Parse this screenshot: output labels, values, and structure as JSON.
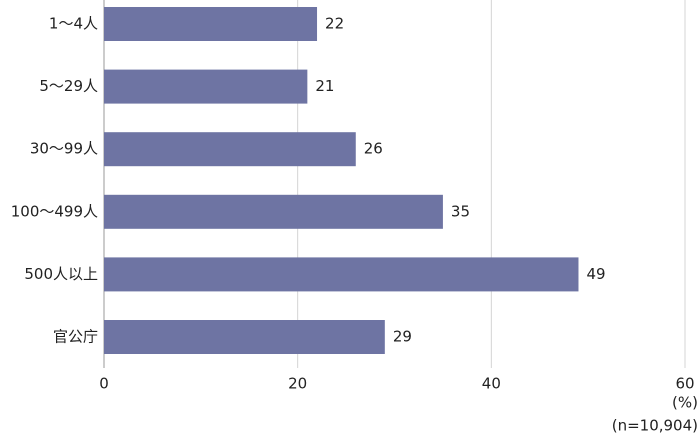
{
  "chart_data": {
    "type": "bar",
    "orientation": "horizontal",
    "categories": [
      "1～4人",
      "5～29人",
      "30～99人",
      "100～499人",
      "500人以上",
      "官公庁"
    ],
    "values": [
      22,
      21,
      26,
      35,
      49,
      29
    ],
    "color": "#6e74a3",
    "xlim": [
      0,
      60
    ],
    "xticks": [
      0,
      20,
      40,
      60
    ],
    "grid": true,
    "annotations": [
      "(%)",
      "(n=10,904)"
    ]
  }
}
